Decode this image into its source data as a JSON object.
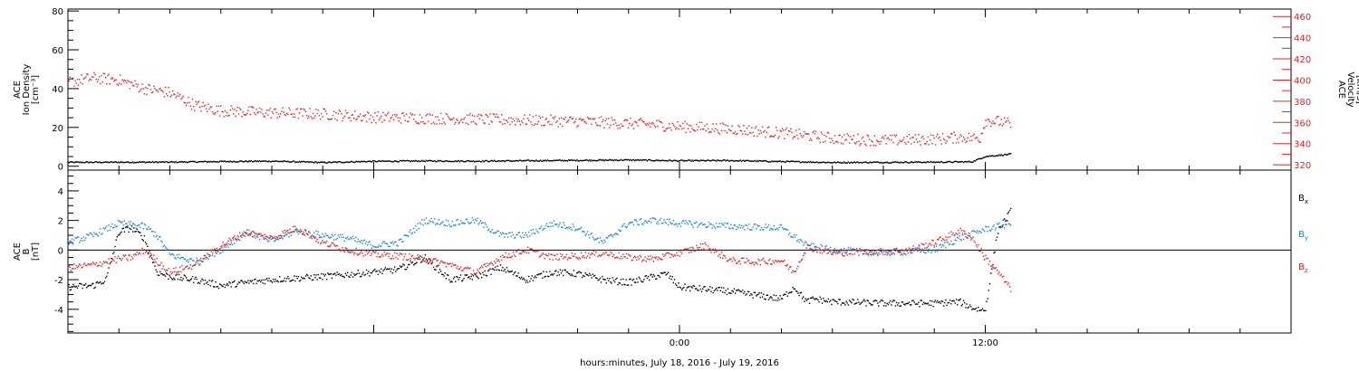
{
  "xlabel": "hours:minutes, July 18, 2016 - July 19, 2016",
  "colors": {
    "black": "#000000",
    "red": "#e8201c",
    "blue": "#1a86d8"
  },
  "chart_data": [
    {
      "type": "scatter",
      "panel": "top",
      "x_unit": "hours relative to 2016-07-19 00:00",
      "xlim": [
        -24,
        24
      ],
      "x_ticks": [
        {
          "x": 0,
          "label": "0:00"
        },
        {
          "x": 12,
          "label": "12:00"
        }
      ],
      "left_axis": {
        "title_lines": [
          "ACE",
          "Ion Density",
          "[cm⁻³]"
        ],
        "ylim": [
          -2,
          81
        ],
        "ticks": [
          0,
          20,
          40,
          60,
          80
        ],
        "tick_labels": [
          "0",
          "20",
          "40",
          "60",
          "80"
        ]
      },
      "right_axis": {
        "title_lines": [
          "ACE",
          "Velocity",
          "[km/s]"
        ],
        "ylim": [
          315,
          467
        ],
        "ticks": [
          320,
          340,
          360,
          380,
          400,
          420,
          440,
          460
        ],
        "tick_labels": [
          "320",
          "340",
          "360",
          "380",
          "400",
          "420",
          "440",
          "460"
        ]
      },
      "series": [
        {
          "name": "Ion Density",
          "axis": "left",
          "color": "#000000",
          "x": [
            -24,
            -20,
            -18,
            -16,
            -14,
            -12,
            -10,
            -8,
            -6,
            -4,
            -2,
            0,
            2,
            4,
            5,
            6,
            8,
            10,
            11,
            11.5,
            12,
            13
          ],
          "values": [
            2.0,
            2.1,
            2.4,
            2.6,
            1.9,
            2.5,
            2.7,
            2.6,
            2.8,
            3.0,
            3.2,
            2.8,
            2.9,
            2.4,
            2.2,
            1.9,
            2.0,
            2.1,
            2.2,
            2.3,
            5.0,
            6.2
          ]
        },
        {
          "name": "Velocity",
          "axis": "right",
          "color": "#e8201c",
          "x": [
            -24,
            -23,
            -22,
            -21,
            -20,
            -19,
            -18,
            -16,
            -14,
            -12,
            -10,
            -8,
            -6,
            -4,
            -2,
            -1,
            0,
            2,
            4,
            6,
            8,
            10,
            11,
            11.8,
            12,
            12.5,
            13
          ],
          "values": [
            398,
            402,
            400,
            392,
            388,
            376,
            371,
            369,
            368,
            365,
            364,
            363,
            362,
            361,
            359,
            358,
            356,
            354,
            350,
            345,
            343,
            344,
            346,
            345,
            362,
            361,
            358
          ]
        }
      ]
    },
    {
      "type": "scatter",
      "panel": "bottom",
      "x_unit": "hours relative to 2016-07-19 00:00",
      "xlim": [
        -24,
        24
      ],
      "x_ticks": [
        {
          "x": 0,
          "label": "0:00"
        },
        {
          "x": 12,
          "label": "12:00"
        }
      ],
      "left_axis": {
        "title_lines": [
          "ACE",
          "B",
          "[nT]"
        ],
        "ylim": [
          -5.6,
          5.4
        ],
        "ticks": [
          -4,
          -2,
          0,
          2,
          4
        ],
        "tick_labels": [
          "-4",
          "-2",
          "0",
          "2",
          "4"
        ]
      },
      "zero_line": true,
      "legend": [
        {
          "label": "B",
          "sub": "x",
          "color": "#000000"
        },
        {
          "label": "B",
          "sub": "y",
          "color": "#1a86d8"
        },
        {
          "label": "B",
          "sub": "z",
          "color": "#e8201c"
        }
      ],
      "series": [
        {
          "name": "Bx",
          "color": "#000000",
          "x": [
            -24,
            -23,
            -22.5,
            -22,
            -21.5,
            -21,
            -20.5,
            -20,
            -19,
            -18,
            -16,
            -14,
            -12,
            -11,
            -10,
            -9,
            -8,
            -7,
            -6,
            -5,
            -4,
            -3,
            -2,
            -1,
            -0.5,
            0,
            2,
            4,
            4.5,
            5,
            5.3,
            6,
            8,
            10,
            11,
            11.5,
            12,
            12.5,
            13
          ],
          "values": [
            -2.5,
            -2.4,
            -2.0,
            1.2,
            1.5,
            0.8,
            -1.5,
            -1.8,
            -2.0,
            -2.4,
            -2.0,
            -1.8,
            -1.5,
            -1.3,
            -0.5,
            -2.0,
            -1.8,
            -1.2,
            -2.0,
            -1.5,
            -1.6,
            -2.0,
            -2.2,
            -1.8,
            -1.6,
            -2.5,
            -2.8,
            -3.3,
            -2.5,
            -3.5,
            -3.3,
            -3.5,
            -3.6,
            -3.6,
            -3.5,
            -3.9,
            -4.1,
            1.3,
            2.6
          ]
        },
        {
          "name": "By",
          "color": "#1a86d8",
          "x": [
            -24,
            -23,
            -22,
            -21,
            -20.5,
            -20,
            -19,
            -18,
            -17,
            -16,
            -15,
            -14,
            -13,
            -12,
            -11,
            -10,
            -9,
            -8,
            -7,
            -6,
            -5,
            -4,
            -3,
            -2,
            -1,
            0,
            2,
            4,
            5,
            6,
            8,
            10,
            11,
            12,
            13
          ],
          "values": [
            0.5,
            1.0,
            1.8,
            1.6,
            1.0,
            -0.3,
            -0.8,
            0.0,
            1.2,
            0.6,
            1.3,
            1.0,
            0.8,
            0.3,
            0.5,
            2.0,
            1.8,
            2.0,
            1.0,
            1.0,
            1.8,
            1.5,
            0.5,
            1.8,
            2.0,
            1.8,
            1.6,
            1.5,
            0.3,
            0.0,
            -0.2,
            0.0,
            0.8,
            1.4,
            1.8
          ]
        },
        {
          "name": "Bz",
          "color": "#e8201c",
          "x": [
            -24,
            -23,
            -22,
            -21.5,
            -21,
            -20,
            -19,
            -18,
            -17,
            -16,
            -15,
            -14,
            -13,
            -12,
            -11,
            -10,
            -9,
            -8,
            -7,
            -6,
            -5,
            -4,
            -3,
            -2,
            -1,
            0,
            1,
            2,
            3,
            4,
            4.5,
            5,
            6,
            8,
            9,
            10,
            11,
            11.5,
            12,
            12.5,
            13
          ],
          "values": [
            -1.2,
            -1.0,
            -0.6,
            -0.5,
            0.0,
            -1.5,
            -1.0,
            0.3,
            1.2,
            0.8,
            1.5,
            0.5,
            0.0,
            -0.3,
            -0.4,
            -0.6,
            -1.0,
            -1.5,
            -0.5,
            0.0,
            -0.5,
            -0.4,
            -0.2,
            -0.5,
            -0.6,
            -0.2,
            0.3,
            -0.7,
            -0.8,
            -0.7,
            -1.5,
            0.2,
            -0.2,
            -0.1,
            0.0,
            0.5,
            1.3,
            0.8,
            -0.5,
            -1.5,
            -2.6
          ]
        }
      ]
    }
  ]
}
